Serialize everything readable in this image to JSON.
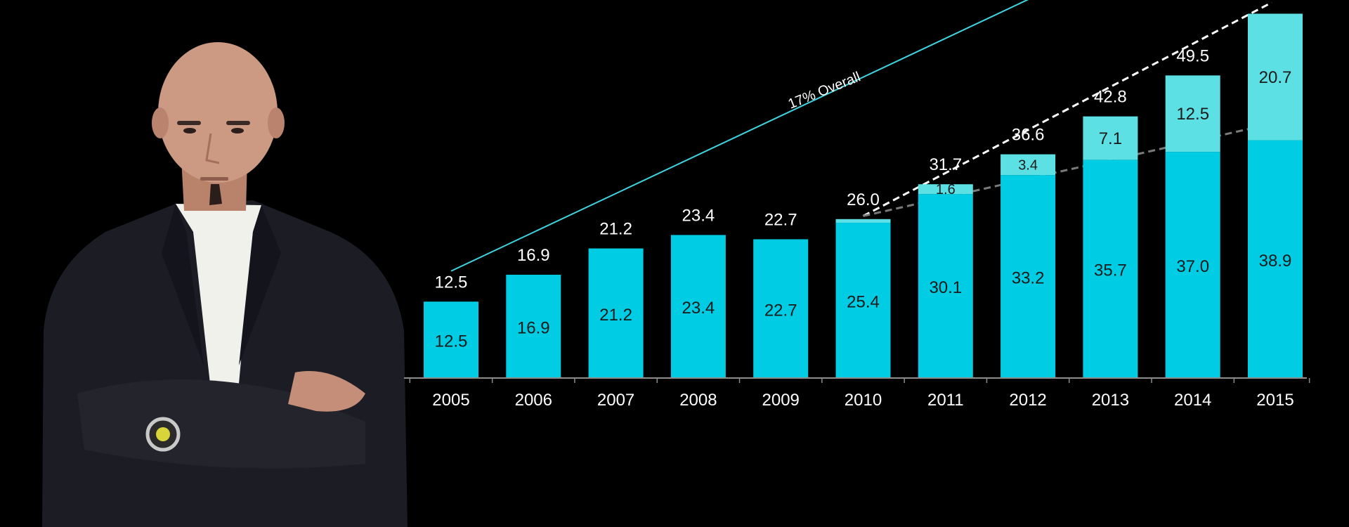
{
  "colors": {
    "background": "#000000",
    "bar_base": "#00cce3",
    "bar_top": "#5ce0e3",
    "trend_cyan": "#3fd3df",
    "trend_white": "#ffffff",
    "trend_gray": "#7a7a7a",
    "axis": "#8c8c8c"
  },
  "person_photo": {
    "icon": "man-crossed-arms-photo",
    "description_colors": {
      "jacket": "#1b1c24",
      "shirt": "#f1f1ec",
      "skin": "#c89780"
    }
  },
  "chart_data": {
    "type": "bar",
    "stacked": true,
    "categories": [
      "2005",
      "2006",
      "2007",
      "2008",
      "2009",
      "2010",
      "2011",
      "2012",
      "2013",
      "2014",
      "2015"
    ],
    "series": [
      {
        "values": [
          12.5,
          16.9,
          21.2,
          23.4,
          22.7,
          25.4,
          30.1,
          33.2,
          35.7,
          37.0,
          38.9
        ]
      },
      {
        "values": [
          0,
          0,
          0,
          0,
          0,
          0.6,
          1.6,
          3.4,
          7.1,
          12.5,
          20.7
        ]
      }
    ],
    "inner_labels_base": [
      "12.5",
      "16.9",
      "21.2",
      "23.4",
      "22.7",
      "25.4",
      "30.1",
      "33.2",
      "35.7",
      "37.0",
      "38.9"
    ],
    "inner_labels_top": [
      "",
      "",
      "",
      "",
      "",
      "",
      "1.6",
      "3.4",
      "7.1",
      "12.5",
      "20.7"
    ],
    "totals": [
      "12.5",
      "16.9",
      "21.2",
      "23.4",
      "22.7",
      "26.0",
      "31.7",
      "36.6",
      "42.8",
      "49.5",
      ""
    ],
    "ylim": [
      0,
      60
    ],
    "annotation": "17% Overall",
    "trend_lines": [
      {
        "style": "solid",
        "from_category": "2005",
        "to_category": "2015",
        "from_value": 17.5,
        "to_value": 73.0
      },
      {
        "style": "dashed",
        "from_category": "2010",
        "to_category": "2015",
        "from_value": 26.5,
        "to_value": 62.0
      },
      {
        "style": "dashed-arrow",
        "from_category": "2010",
        "to_category": "2015",
        "from_value": 26.5,
        "to_value": 42.5
      }
    ],
    "grid": false,
    "legend": "none"
  }
}
